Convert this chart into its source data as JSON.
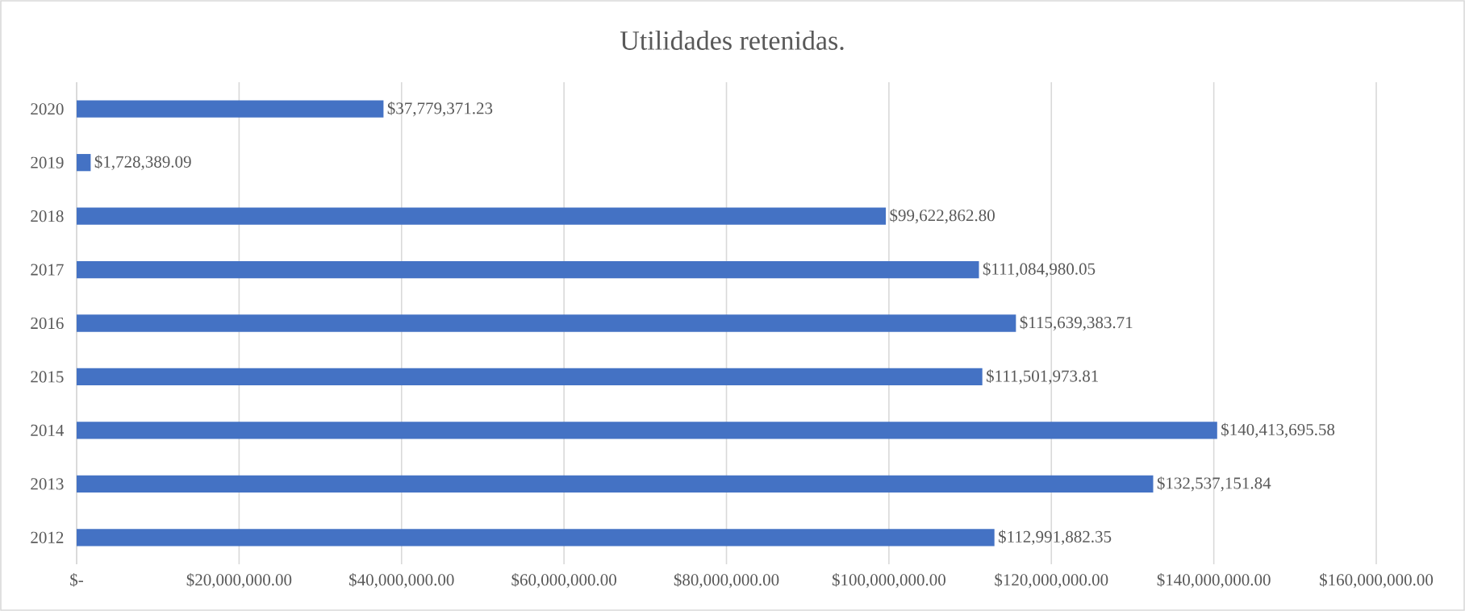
{
  "chart_data": {
    "type": "bar",
    "orientation": "horizontal",
    "title": "Utilidades retenidas.",
    "categories": [
      "2020",
      "2019",
      "2018",
      "2017",
      "2016",
      "2015",
      "2014",
      "2013",
      "2012"
    ],
    "values": [
      37779371.23,
      1728389.09,
      99622862.8,
      111084980.05,
      115639383.71,
      111501973.81,
      140413695.58,
      132537151.84,
      112991882.35
    ],
    "value_labels": [
      "$37,779,371.23",
      "$1,728,389.09",
      "$99,622,862.80",
      "$111,084,980.05",
      "$115,639,383.71",
      "$111,501,973.81",
      "$140,413,695.58",
      "$132,537,151.84",
      "$112,991,882.35"
    ],
    "color": "#4472c4",
    "xlim": [
      0,
      160000000
    ],
    "xticks": [
      {
        "value": 0,
        "label": "$-"
      },
      {
        "value": 20000000,
        "label": "$20,000,000.00"
      },
      {
        "value": 40000000,
        "label": "$40,000,000.00"
      },
      {
        "value": 60000000,
        "label": "$60,000,000.00"
      },
      {
        "value": 80000000,
        "label": "$80,000,000.00"
      },
      {
        "value": 100000000,
        "label": "$100,000,000.00"
      },
      {
        "value": 120000000,
        "label": "$120,000,000.00"
      },
      {
        "value": 140000000,
        "label": "$140,000,000.00"
      },
      {
        "value": 160000000,
        "label": "$160,000,000.00"
      }
    ],
    "grid": "x"
  }
}
